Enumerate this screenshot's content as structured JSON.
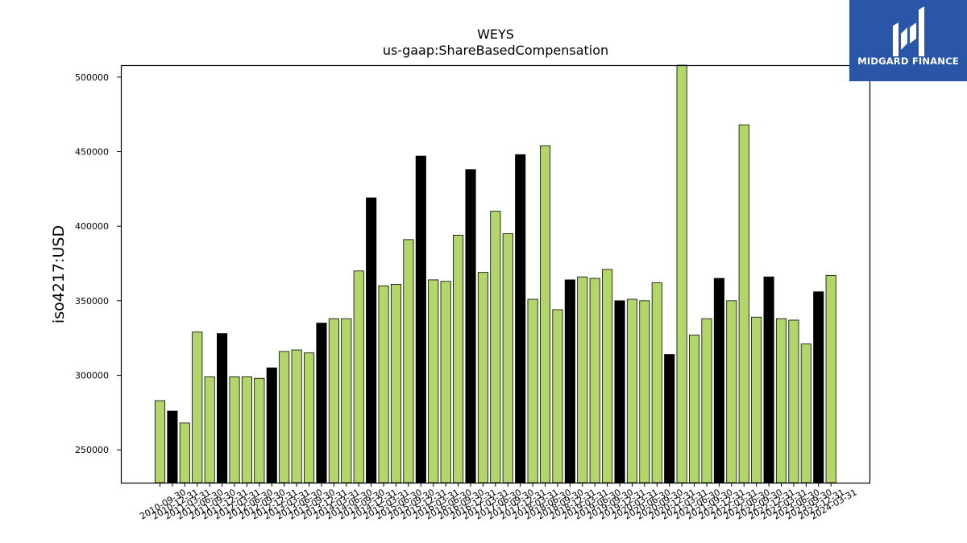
{
  "brand": {
    "name": "MIDGARD FINANCE",
    "color": "#2a56a8",
    "icon": "midgard-logo-icon"
  },
  "colors": {
    "bar_primary": "#b3d66a",
    "bar_highlight": "#000000",
    "bar_edge": "#000000"
  },
  "chart_data": {
    "type": "bar",
    "title": "WEYS",
    "subtitle": "us-gaap:ShareBasedCompensation",
    "ylabel": "iso4217:USD",
    "xlabel": "",
    "ylim": [
      228000,
      508000
    ],
    "yticks": [
      250000,
      300000,
      350000,
      400000,
      450000,
      500000
    ],
    "grid": false,
    "categories": [
      "2010-09-30",
      "2010-12-31",
      "2011-03-31",
      "2011-06-30",
      "2011-09-30",
      "2011-12-31",
      "2012-03-31",
      "2012-06-30",
      "2012-09-30",
      "2012-12-31",
      "2013-03-31",
      "2013-06-30",
      "2013-09-30",
      "2013-12-31",
      "2014-03-31",
      "2014-06-30",
      "2014-09-30",
      "2014-12-31",
      "2015-03-31",
      "2015-06-30",
      "2015-09-30",
      "2015-12-31",
      "2016-03-31",
      "2016-06-30",
      "2016-09-30",
      "2016-12-31",
      "2017-03-31",
      "2017-06-30",
      "2017-09-30",
      "2017-12-31",
      "2018-03-31",
      "2018-06-30",
      "2018-09-30",
      "2018-12-31",
      "2019-03-31",
      "2019-06-30",
      "2019-09-30",
      "2019-12-31",
      "2020-03-31",
      "2020-06-30",
      "2020-09-30",
      "2020-12-31",
      "2021-03-31",
      "2021-06-30",
      "2021-09-30",
      "2021-12-31",
      "2022-03-31",
      "2022-06-30",
      "2022-09-30",
      "2022-12-31",
      "2023-03-31",
      "2023-06-30",
      "2023-09-30",
      "2023-12-31",
      "2024-03-31"
    ],
    "values": [
      283000,
      276000,
      268000,
      329000,
      299000,
      328000,
      299000,
      299000,
      298000,
      305000,
      316000,
      317000,
      315000,
      335000,
      338000,
      338000,
      370000,
      419000,
      360000,
      361000,
      391000,
      447000,
      364000,
      363000,
      394000,
      438000,
      369000,
      410000,
      395000,
      448000,
      351000,
      454000,
      344000,
      364000,
      366000,
      365000,
      371000,
      350000,
      351000,
      350000,
      362000,
      314000,
      508000,
      327000,
      338000,
      365000,
      350000,
      468000,
      339000,
      366000,
      338000,
      337000,
      321000,
      356000,
      367000
    ],
    "highlighted": [
      false,
      true,
      false,
      false,
      false,
      true,
      false,
      false,
      false,
      true,
      false,
      false,
      false,
      true,
      false,
      false,
      false,
      true,
      false,
      false,
      false,
      true,
      false,
      false,
      false,
      true,
      false,
      false,
      false,
      true,
      false,
      false,
      false,
      true,
      false,
      false,
      false,
      true,
      false,
      false,
      false,
      true,
      false,
      false,
      false,
      true,
      false,
      false,
      false,
      true,
      false,
      false,
      false,
      true,
      false
    ]
  }
}
